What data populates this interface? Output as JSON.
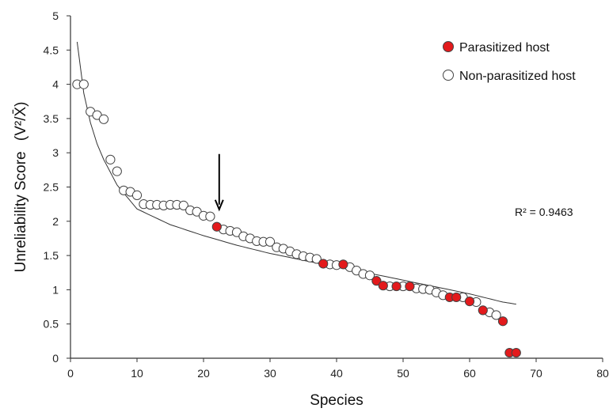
{
  "chart_data": {
    "type": "scatter",
    "title": "",
    "xlabel": "Species",
    "ylabel": "Unreliability Score",
    "ylabel_formula": "(V²/X̄)",
    "xlim": [
      0,
      80
    ],
    "ylim": [
      0,
      5
    ],
    "x_ticks": [
      0,
      10,
      20,
      30,
      40,
      50,
      60,
      70,
      80
    ],
    "y_ticks": [
      0,
      0.5,
      1,
      1.5,
      2,
      2.5,
      3,
      3.5,
      4,
      4.5,
      5
    ],
    "y_tick_labels": [
      "0",
      "0.5",
      "1",
      "1.5",
      "2",
      "2.5",
      "3",
      "3.5",
      "4",
      "4.5",
      "5"
    ],
    "grid": false,
    "legend_position": "top-right",
    "colors": {
      "parasitized": "#e31a1c",
      "non_parasitized": "#ffffff",
      "marker_edge": "#444444",
      "axis": "#333333",
      "trend": "#333333"
    },
    "series": [
      {
        "name": "Parasitized host",
        "marker": "filled-red-circle",
        "points": [
          [
            22,
            1.92
          ],
          [
            38,
            1.38
          ],
          [
            41,
            1.37
          ],
          [
            46,
            1.13
          ],
          [
            47,
            1.06
          ],
          [
            49,
            1.05
          ],
          [
            51,
            1.05
          ],
          [
            57,
            0.89
          ],
          [
            58,
            0.89
          ],
          [
            60,
            0.83
          ],
          [
            62,
            0.7
          ],
          [
            65,
            0.54
          ],
          [
            66,
            0.08
          ],
          [
            67,
            0.08
          ]
        ]
      },
      {
        "name": "Non-parasitized host",
        "marker": "open-circle",
        "points": [
          [
            1,
            4.0
          ],
          [
            2,
            4.0
          ],
          [
            3,
            3.6
          ],
          [
            4,
            3.55
          ],
          [
            5,
            3.49
          ],
          [
            6,
            2.9
          ],
          [
            7,
            2.73
          ],
          [
            8,
            2.45
          ],
          [
            9,
            2.43
          ],
          [
            10,
            2.38
          ],
          [
            11,
            2.25
          ],
          [
            12,
            2.24
          ],
          [
            13,
            2.24
          ],
          [
            14,
            2.23
          ],
          [
            15,
            2.24
          ],
          [
            16,
            2.24
          ],
          [
            17,
            2.23
          ],
          [
            18,
            2.16
          ],
          [
            19,
            2.14
          ],
          [
            20,
            2.08
          ],
          [
            21,
            2.07
          ],
          [
            23,
            1.88
          ],
          [
            24,
            1.86
          ],
          [
            25,
            1.84
          ],
          [
            26,
            1.78
          ],
          [
            27,
            1.75
          ],
          [
            28,
            1.71
          ],
          [
            29,
            1.7
          ],
          [
            30,
            1.7
          ],
          [
            31,
            1.62
          ],
          [
            32,
            1.6
          ],
          [
            33,
            1.56
          ],
          [
            34,
            1.52
          ],
          [
            35,
            1.49
          ],
          [
            36,
            1.47
          ],
          [
            37,
            1.45
          ],
          [
            39,
            1.37
          ],
          [
            40,
            1.36
          ],
          [
            42,
            1.33
          ],
          [
            43,
            1.28
          ],
          [
            44,
            1.23
          ],
          [
            45,
            1.21
          ],
          [
            48,
            1.05
          ],
          [
            50,
            1.05
          ],
          [
            52,
            1.02
          ],
          [
            53,
            1.01
          ],
          [
            54,
            1.0
          ],
          [
            55,
            0.96
          ],
          [
            56,
            0.92
          ],
          [
            59,
            0.89
          ],
          [
            61,
            0.82
          ],
          [
            63,
            0.67
          ],
          [
            64,
            0.63
          ]
        ]
      }
    ],
    "trendline": {
      "type": "logarithmic",
      "points": [
        [
          1,
          4.62
        ],
        [
          2,
          3.87
        ],
        [
          3,
          3.44
        ],
        [
          4,
          3.13
        ],
        [
          5,
          2.9
        ],
        [
          7,
          2.53
        ],
        [
          10,
          2.18
        ],
        [
          15,
          1.95
        ],
        [
          20,
          1.79
        ],
        [
          25,
          1.65
        ],
        [
          30,
          1.53
        ],
        [
          35,
          1.43
        ],
        [
          40,
          1.33
        ],
        [
          45,
          1.24
        ],
        [
          50,
          1.14
        ],
        [
          55,
          1.04
        ],
        [
          60,
          0.94
        ],
        [
          65,
          0.82
        ],
        [
          67,
          0.79
        ]
      ]
    },
    "annotations": {
      "r_squared": "R² = 0.9463",
      "arrow_points_to": [
        22,
        1.92
      ]
    }
  }
}
